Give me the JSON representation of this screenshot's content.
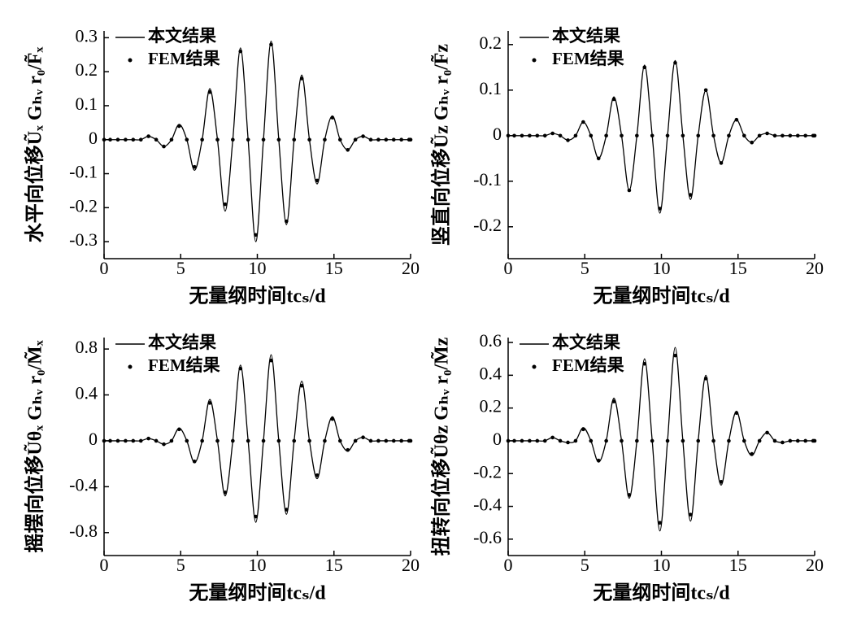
{
  "chart_data": [
    {
      "type": "line",
      "y_label": "水平向位移Ũₓ Gₕᵥ r₀/F̃ₓ",
      "x_label": "无量纲时间tcₛ/d",
      "x": [
        0,
        0.4,
        0.9,
        1.4,
        1.9,
        2.4,
        2.9,
        3.4,
        3.9,
        4.4,
        4.9,
        5.4,
        5.9,
        6.4,
        6.9,
        7.4,
        7.9,
        8.4,
        8.9,
        9.4,
        9.9,
        10.4,
        10.9,
        11.4,
        11.9,
        12.4,
        12.9,
        13.4,
        13.9,
        14.4,
        14.9,
        15.4,
        15.9,
        16.4,
        16.9,
        17.4,
        17.9,
        18.4,
        18.9,
        19.4,
        19.9,
        20
      ],
      "series": [
        {
          "name": "本文结果",
          "color": "#000000",
          "mode": "line",
          "values": [
            0,
            0,
            0,
            0,
            0,
            0,
            0.01,
            0,
            -0.02,
            0,
            0.045,
            0,
            -0.09,
            0,
            0.15,
            0,
            -0.21,
            0,
            0.27,
            0,
            -0.3,
            0,
            0.29,
            0,
            -0.25,
            0,
            0.19,
            0,
            -0.13,
            0,
            0.07,
            0,
            -0.03,
            0,
            0.01,
            0,
            0,
            0,
            0,
            0,
            0,
            0
          ]
        },
        {
          "name": "FEM结果",
          "color": "#000000",
          "mode": "markers",
          "values": [
            0,
            0,
            0,
            0,
            0,
            0,
            0.01,
            0,
            -0.02,
            0,
            0.04,
            0,
            -0.08,
            0,
            0.14,
            0,
            -0.19,
            0,
            0.26,
            0,
            -0.28,
            0,
            0.28,
            0,
            -0.24,
            0,
            0.18,
            0,
            -0.12,
            0,
            0.065,
            0,
            -0.03,
            0,
            0.01,
            0,
            0,
            0,
            0,
            0,
            0,
            0
          ]
        }
      ],
      "xlim": [
        0,
        20
      ],
      "xticks": [
        0,
        5,
        10,
        15,
        20
      ],
      "ylim": [
        -0.35,
        0.32
      ],
      "yticks": [
        -0.3,
        -0.2,
        -0.1,
        0,
        0.1,
        0.2,
        0.3
      ],
      "legend": "upper-left"
    },
    {
      "type": "line",
      "y_label": "竖直向位移Ũz Gₕᵥ r₀/F̃z",
      "x_label": "无量纲时间tcₛ/d",
      "x": [
        0,
        0.4,
        0.9,
        1.4,
        1.9,
        2.4,
        2.9,
        3.4,
        3.9,
        4.4,
        4.9,
        5.4,
        5.9,
        6.4,
        6.9,
        7.4,
        7.9,
        8.4,
        8.9,
        9.4,
        9.9,
        10.4,
        10.9,
        11.4,
        11.9,
        12.4,
        12.9,
        13.4,
        13.9,
        14.4,
        14.9,
        15.4,
        15.9,
        16.4,
        16.9,
        17.4,
        17.9,
        18.4,
        18.9,
        19.4,
        19.9,
        20
      ],
      "series": [
        {
          "name": "本文结果",
          "color": "#000000",
          "mode": "line",
          "values": [
            0,
            0,
            0,
            0,
            0,
            0,
            0.005,
            0,
            -0.01,
            0,
            0.03,
            0,
            -0.05,
            0,
            0.085,
            0,
            -0.12,
            0,
            0.155,
            0,
            -0.17,
            0,
            0.165,
            0,
            -0.14,
            0,
            0.1,
            0,
            -0.06,
            0,
            0.035,
            0,
            -0.015,
            0,
            0.005,
            0,
            0,
            0,
            0,
            0,
            0,
            0
          ]
        },
        {
          "name": "FEM结果",
          "color": "#000000",
          "mode": "markers",
          "values": [
            0,
            0,
            0,
            0,
            0,
            0,
            0.005,
            0,
            -0.01,
            0,
            0.03,
            0,
            -0.05,
            0,
            0.08,
            0,
            -0.12,
            0,
            0.15,
            0,
            -0.16,
            0,
            0.16,
            0,
            -0.13,
            0,
            0.1,
            0,
            -0.06,
            0,
            0.035,
            0,
            -0.015,
            0,
            0.005,
            0,
            0,
            0,
            0,
            0,
            0,
            0
          ]
        }
      ],
      "xlim": [
        0,
        20
      ],
      "xticks": [
        0,
        5,
        10,
        15,
        20
      ],
      "ylim": [
        -0.27,
        0.23
      ],
      "yticks": [
        -0.2,
        -0.1,
        0,
        0.1,
        0.2
      ],
      "legend": "upper-left"
    },
    {
      "type": "line",
      "y_label": "摇摆向位移Ũθₓ Gₕᵥ r₀/M̃ₓ",
      "x_label": "无量纲时间tcₛ/d",
      "x": [
        0,
        0.4,
        0.9,
        1.4,
        1.9,
        2.4,
        2.9,
        3.4,
        3.9,
        4.4,
        4.9,
        5.4,
        5.9,
        6.4,
        6.9,
        7.4,
        7.9,
        8.4,
        8.9,
        9.4,
        9.9,
        10.4,
        10.9,
        11.4,
        11.9,
        12.4,
        12.9,
        13.4,
        13.9,
        14.4,
        14.9,
        15.4,
        15.9,
        16.4,
        16.9,
        17.4,
        17.9,
        18.4,
        18.9,
        19.4,
        19.9,
        20
      ],
      "series": [
        {
          "name": "本文结果",
          "color": "#000000",
          "mode": "line",
          "values": [
            0,
            0,
            0,
            0,
            0,
            0,
            0.02,
            0,
            -0.03,
            0,
            0.11,
            0,
            -0.19,
            0,
            0.36,
            0,
            -0.48,
            0,
            0.66,
            0,
            -0.71,
            0,
            0.75,
            0,
            -0.64,
            0,
            0.52,
            0,
            -0.33,
            0,
            0.21,
            0,
            -0.09,
            0,
            0.03,
            0,
            0,
            0,
            0,
            0,
            0,
            0
          ]
        },
        {
          "name": "FEM结果",
          "color": "#000000",
          "mode": "markers",
          "values": [
            0,
            0,
            0,
            0,
            0,
            0,
            0.02,
            0,
            -0.03,
            0,
            0.1,
            0,
            -0.18,
            0,
            0.33,
            0,
            -0.45,
            0,
            0.63,
            0,
            -0.66,
            0,
            0.7,
            0,
            -0.6,
            0,
            0.48,
            0,
            -0.3,
            0,
            0.19,
            0,
            -0.08,
            0,
            0.03,
            0,
            0,
            0,
            0,
            0,
            0,
            0
          ]
        }
      ],
      "xlim": [
        0,
        20
      ],
      "xticks": [
        0,
        5,
        10,
        15,
        20
      ],
      "ylim": [
        -1,
        0.9
      ],
      "yticks": [
        -0.8,
        -0.4,
        0,
        0.4,
        0.8
      ],
      "legend": "upper-left"
    },
    {
      "type": "line",
      "y_label": "扭转向位移Ũθz Gₕᵥ r₀/M̃z",
      "x_label": "无量纲时间tcₛ/d",
      "x": [
        0,
        0.4,
        0.9,
        1.4,
        1.9,
        2.4,
        2.9,
        3.4,
        3.9,
        4.4,
        4.9,
        5.4,
        5.9,
        6.4,
        6.9,
        7.4,
        7.9,
        8.4,
        8.9,
        9.4,
        9.9,
        10.4,
        10.9,
        11.4,
        11.9,
        12.4,
        12.9,
        13.4,
        13.9,
        14.4,
        14.9,
        15.4,
        15.9,
        16.4,
        16.9,
        17.4,
        17.9,
        18.4,
        18.9,
        19.4,
        19.9,
        20
      ],
      "series": [
        {
          "name": "本文结果",
          "color": "#000000",
          "mode": "line",
          "values": [
            0,
            0,
            0,
            0,
            0,
            0,
            0.02,
            0,
            -0.01,
            0,
            0.08,
            0,
            -0.13,
            0,
            0.26,
            0,
            -0.35,
            0,
            0.5,
            0,
            -0.55,
            0,
            0.57,
            0,
            -0.49,
            0,
            0.4,
            0,
            -0.27,
            0,
            0.18,
            0,
            -0.09,
            0,
            0.05,
            0,
            -0.01,
            0,
            0,
            0,
            0,
            0
          ]
        },
        {
          "name": "FEM结果",
          "color": "#000000",
          "mode": "markers",
          "values": [
            0,
            0,
            0,
            0,
            0,
            0,
            0.02,
            0,
            -0.01,
            0,
            0.07,
            0,
            -0.12,
            0,
            0.24,
            0,
            -0.33,
            0,
            0.47,
            0,
            -0.5,
            0,
            0.52,
            0,
            -0.45,
            0,
            0.38,
            0,
            -0.25,
            0,
            0.17,
            0,
            -0.08,
            0,
            0.05,
            0,
            -0.01,
            0,
            0,
            0,
            0,
            0
          ]
        }
      ],
      "xlim": [
        0,
        20
      ],
      "xticks": [
        0,
        5,
        10,
        15,
        20
      ],
      "ylim": [
        -0.7,
        0.63
      ],
      "yticks": [
        -0.6,
        -0.4,
        -0.2,
        0,
        0.2,
        0.4,
        0.6
      ],
      "legend": "upper-left"
    }
  ]
}
